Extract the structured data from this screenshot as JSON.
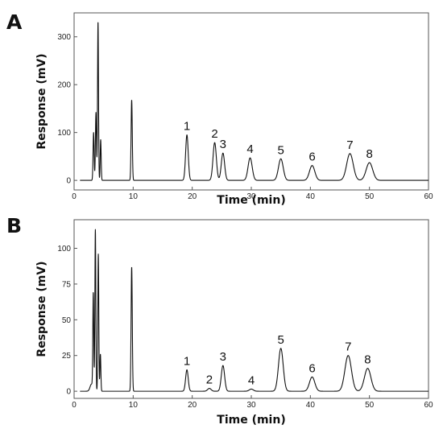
{
  "chart_data": [
    {
      "type": "line",
      "panel_label": "A",
      "xlabel": "Time  (min)",
      "ylabel": "Response (mV)",
      "xlim": [
        0,
        60
      ],
      "ylim": [
        -20,
        350
      ],
      "xticks": [
        0,
        10,
        20,
        30,
        40,
        50,
        60
      ],
      "yticks": [
        0,
        100,
        200,
        300
      ],
      "baseline": 0,
      "solvent_peaks": [
        {
          "t": 3.3,
          "h": 100,
          "w": 0.09
        },
        {
          "t": 3.7,
          "h": 142,
          "w": 0.09
        },
        {
          "t": 4.05,
          "h": 332,
          "w": 0.08
        },
        {
          "t": 4.5,
          "h": 85,
          "w": 0.08
        },
        {
          "t": 9.75,
          "h": 168,
          "w": 0.1
        }
      ],
      "peaks": [
        {
          "label": "1",
          "t": 19.1,
          "h": 95,
          "w": 0.22
        },
        {
          "label": "2",
          "t": 23.8,
          "h": 79,
          "w": 0.28
        },
        {
          "label": "3",
          "t": 25.2,
          "h": 57,
          "w": 0.28
        },
        {
          "label": "4",
          "t": 29.8,
          "h": 47,
          "w": 0.35
        },
        {
          "label": "5",
          "t": 35.0,
          "h": 45,
          "w": 0.4
        },
        {
          "label": "6",
          "t": 40.3,
          "h": 31,
          "w": 0.45
        },
        {
          "label": "7",
          "t": 46.7,
          "h": 56,
          "w": 0.55
        },
        {
          "label": "8",
          "t": 50.0,
          "h": 37,
          "w": 0.55
        }
      ]
    },
    {
      "type": "line",
      "panel_label": "B",
      "xlabel": "Time  (min)",
      "ylabel": "Response (mV)",
      "xlim": [
        0,
        60
      ],
      "ylim": [
        -5,
        120
      ],
      "xticks": [
        0,
        10,
        20,
        30,
        40,
        50,
        60
      ],
      "yticks": [
        0,
        25,
        50,
        75,
        100
      ],
      "baseline": 0,
      "solvent_peaks": [
        {
          "t": 2.95,
          "h": 5,
          "w": 0.25
        },
        {
          "t": 3.25,
          "h": 67,
          "w": 0.08
        },
        {
          "t": 3.6,
          "h": 113,
          "w": 0.08
        },
        {
          "t": 4.1,
          "h": 96,
          "w": 0.08
        },
        {
          "t": 4.45,
          "h": 26,
          "w": 0.08
        },
        {
          "t": 9.75,
          "h": 87,
          "w": 0.1
        }
      ],
      "peaks": [
        {
          "label": "1",
          "t": 19.1,
          "h": 15,
          "w": 0.22
        },
        {
          "label": "2",
          "t": 22.9,
          "h": 2,
          "w": 0.3
        },
        {
          "label": "3",
          "t": 25.2,
          "h": 18,
          "w": 0.28
        },
        {
          "label": "4",
          "t": 30.0,
          "h": 1.5,
          "w": 0.35
        },
        {
          "label": "5",
          "t": 35.0,
          "h": 30,
          "w": 0.4
        },
        {
          "label": "6",
          "t": 40.3,
          "h": 10,
          "w": 0.45
        },
        {
          "label": "7",
          "t": 46.4,
          "h": 25,
          "w": 0.55
        },
        {
          "label": "8",
          "t": 49.7,
          "h": 16,
          "w": 0.55
        }
      ]
    }
  ]
}
